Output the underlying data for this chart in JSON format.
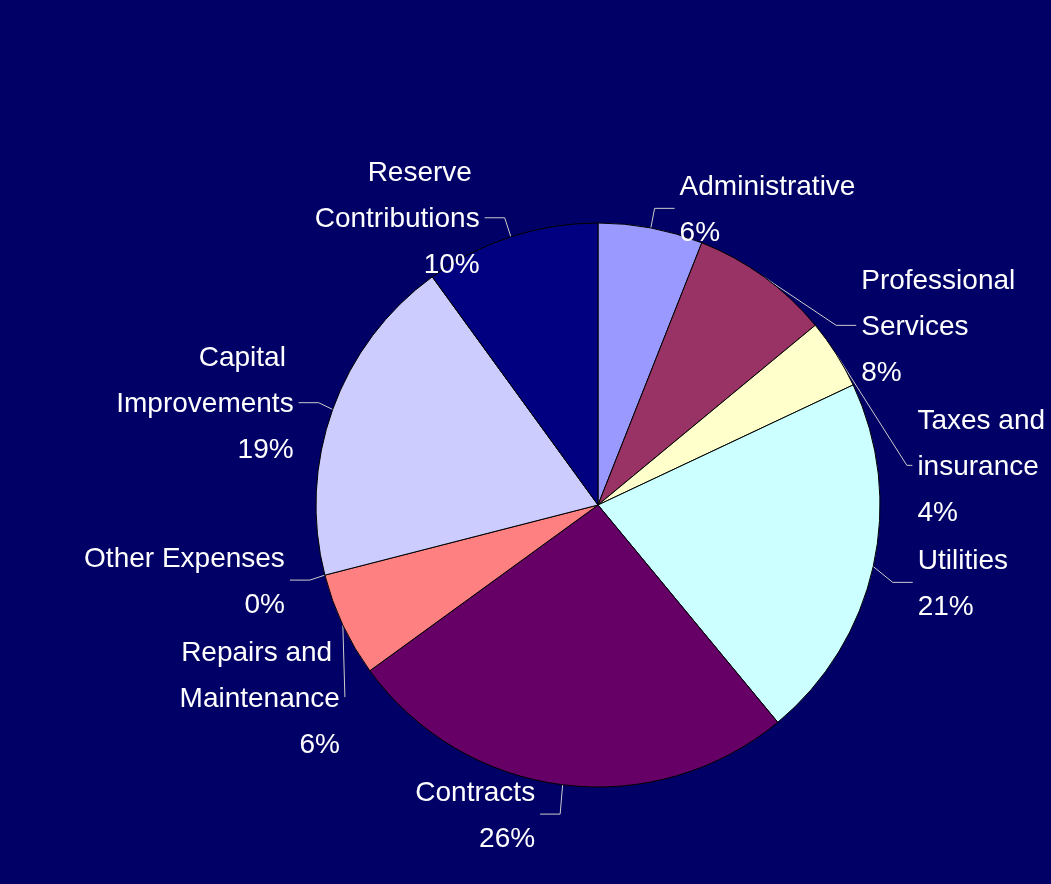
{
  "chart_data": {
    "type": "pie",
    "categories": [
      "Administrative",
      "Professional Services",
      "Taxes and insurance",
      "Utilities",
      "Contracts",
      "Repairs and Maintenance",
      "Other Expenses",
      "Capital Improvements",
      "Reserve Contributions"
    ],
    "values": [
      6,
      8,
      4,
      21,
      26,
      6,
      0,
      19,
      10
    ],
    "value_labels": [
      "6%",
      "8%",
      "4%",
      "21%",
      "26%",
      "6%",
      "0%",
      "19%",
      "10%"
    ],
    "colors": [
      "#9999ff",
      "#993366",
      "#ffffcc",
      "#ccffff",
      "#660066",
      "#ff8080",
      "#0066cc",
      "#ccccff",
      "#000080"
    ],
    "legend": false
  }
}
